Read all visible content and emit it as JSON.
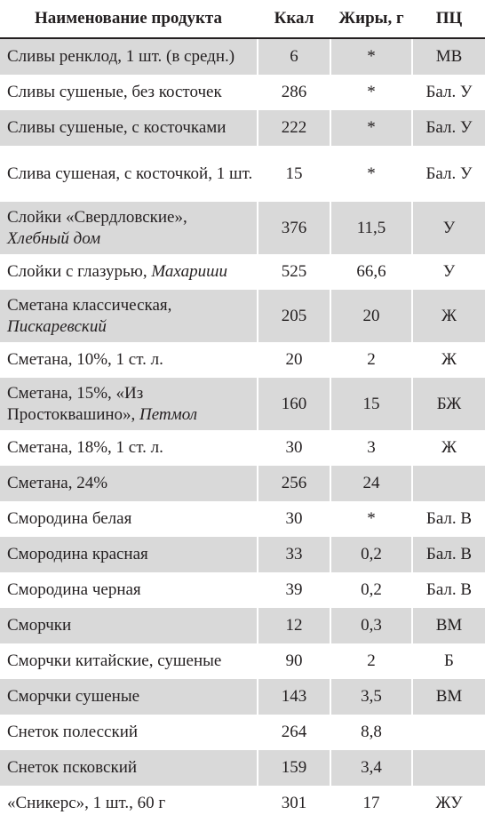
{
  "header": {
    "name": "Наименование продукта",
    "kcal": "Ккал",
    "fat": "Жиры, г",
    "pc": "ПЦ"
  },
  "rows": [
    {
      "name": "Сливы ренклод, 1 шт. (в средн.)",
      "sub": "",
      "kcal": "6",
      "fat": "*",
      "pc": "МВ"
    },
    {
      "name": "Сливы сушеные, без косточек",
      "sub": "",
      "kcal": "286",
      "fat": "*",
      "pc": "Бал. У"
    },
    {
      "name": "Сливы сушеные, с косточками",
      "sub": "",
      "kcal": "222",
      "fat": "*",
      "pc": "Бал. У"
    },
    {
      "name": "Слива сушеная, с косточкой, 1 шт.",
      "sub": "",
      "kcal": "15",
      "fat": "*",
      "pc": "Бал. У"
    },
    {
      "name": "Слойки «Свердловские»,",
      "sub": "Хлебный дом",
      "kcal": "376",
      "fat": "11,5",
      "pc": "У"
    },
    {
      "name": "Слойки с глазурью, ",
      "sub": "Махариши",
      "kcal": "525",
      "fat": "66,6",
      "pc": "У"
    },
    {
      "name": "Сметана классическая,",
      "sub": "Пискаревский",
      "kcal": "205",
      "fat": "20",
      "pc": "Ж"
    },
    {
      "name": "Сметана, 10%, 1 ст. л.",
      "sub": "",
      "kcal": "20",
      "fat": "2",
      "pc": "Ж"
    },
    {
      "name": "Сметана, 15%, «Из Простоквашино»,",
      "sub": "Петмол",
      "kcal": "160",
      "fat": "15",
      "pc": "БЖ"
    },
    {
      "name": "Сметана, 18%, 1 ст. л.",
      "sub": "",
      "kcal": "30",
      "fat": "3",
      "pc": "Ж"
    },
    {
      "name": "Сметана, 24%",
      "sub": "",
      "kcal": "256",
      "fat": "24",
      "pc": ""
    },
    {
      "name": "Смородина белая",
      "sub": "",
      "kcal": "30",
      "fat": "*",
      "pc": "Бал. В"
    },
    {
      "name": "Смородина красная",
      "sub": "",
      "kcal": "33",
      "fat": "0,2",
      "pc": "Бал. В"
    },
    {
      "name": "Смородина черная",
      "sub": "",
      "kcal": "39",
      "fat": "0,2",
      "pc": "Бал. В"
    },
    {
      "name": "Сморчки",
      "sub": "",
      "kcal": "12",
      "fat": "0,3",
      "pc": "ВМ"
    },
    {
      "name": "Сморчки китайские, сушеные",
      "sub": "",
      "kcal": "90",
      "fat": "2",
      "pc": "Б"
    },
    {
      "name": "Сморчки сушеные",
      "sub": "",
      "kcal": "143",
      "fat": "3,5",
      "pc": "ВМ"
    },
    {
      "name": "Снеток полесский",
      "sub": "",
      "kcal": "264",
      "fat": "8,8",
      "pc": ""
    },
    {
      "name": "Снеток псковский",
      "sub": "",
      "kcal": "159",
      "fat": "3,4",
      "pc": ""
    },
    {
      "name": "«Сникерс», 1 шт., 60 г",
      "sub": "",
      "kcal": "301",
      "fat": "17",
      "pc": "ЖУ"
    }
  ]
}
